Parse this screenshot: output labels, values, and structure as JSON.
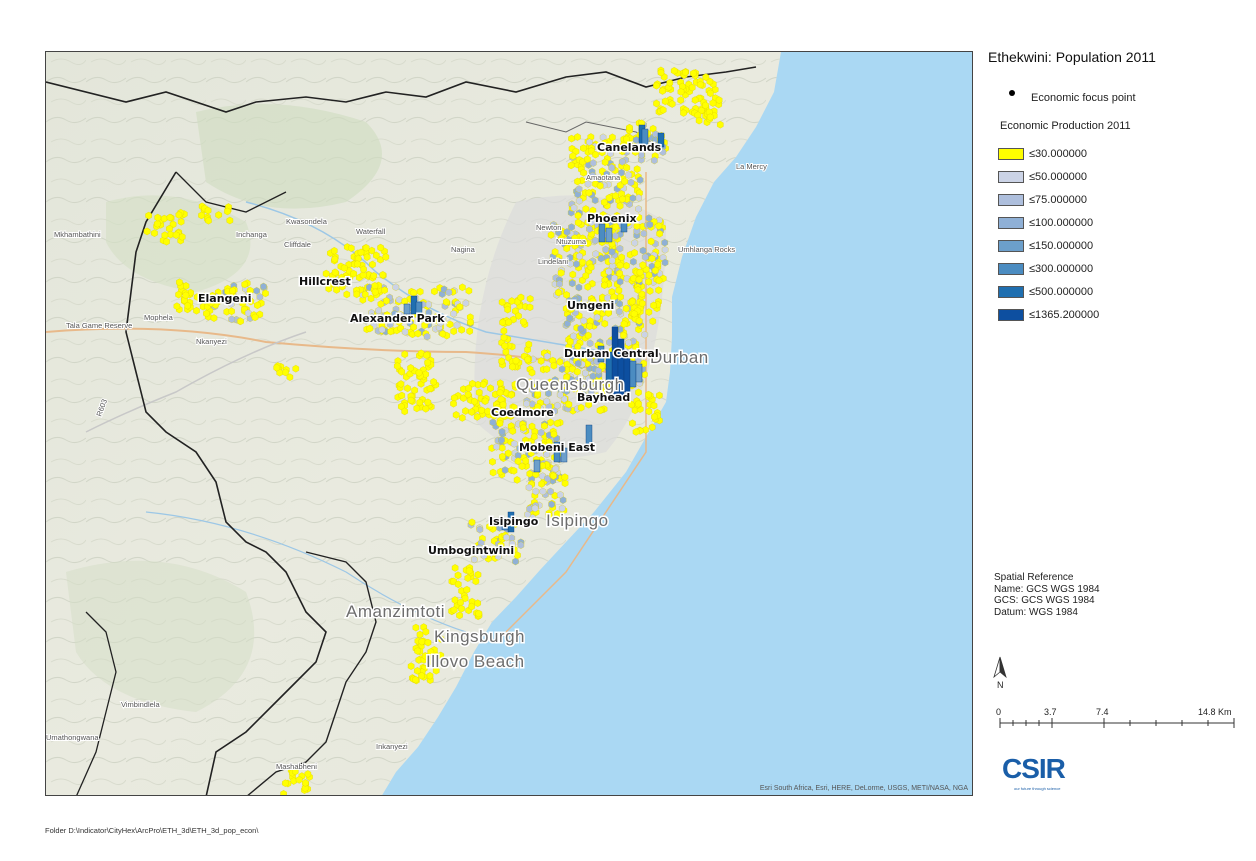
{
  "legend": {
    "title": "Ethekwini: Population 2011",
    "focus_point_label": "Economic focus point",
    "production_title": "Economic Production 2011",
    "classes": [
      {
        "label": "≤30.000000",
        "color": "#ffff00"
      },
      {
        "label": "≤50.000000",
        "color": "#cbd3e6"
      },
      {
        "label": "≤75.000000",
        "color": "#aebfdd"
      },
      {
        "label": "≤100.000000",
        "color": "#8fb0d6"
      },
      {
        "label": "≤150.000000",
        "color": "#6c9fcb"
      },
      {
        "label": "≤300.000000",
        "color": "#4b8cc1"
      },
      {
        "label": "≤500.000000",
        "color": "#1f6fb0"
      },
      {
        "label": "≤1365.200000",
        "color": "#0d4fa0"
      }
    ]
  },
  "spatial_reference": {
    "heading": "Spatial Reference",
    "name": "Name: GCS WGS 1984",
    "gcs": "GCS: GCS WGS 1984",
    "datum": "Datum: WGS 1984"
  },
  "north_label": "N",
  "scale": {
    "ticks": [
      "0",
      "3.7",
      "7.4",
      "14.8 Km"
    ]
  },
  "logo": {
    "text": "CSIR",
    "tagline": "our future through science"
  },
  "attribution": "Esri South Africa, Esri, HERE, DeLorme, USGS, METI/NASA, NGA",
  "folder_path": "Folder D:\\Indicator\\CityHex\\ArcPro\\ETH_3d\\ETH_3d_pop_econ\\",
  "map": {
    "focus_labels": [
      "Canelands",
      "Phoenix",
      "Hillcrest",
      "Elangeni",
      "Umgeni",
      "Alexander Park",
      "Durban Central",
      "Bayhead",
      "Coedmore",
      "Mobeni East",
      "Isipingo",
      "Umbogintwini"
    ],
    "basemap_big_labels": [
      "Durban",
      "Amanzimtoti",
      "Kingsburgh",
      "Illovo Beach",
      "Isipingo",
      "Queensburgh"
    ],
    "basemap_small_labels": [
      "Mkhambathini",
      "Mophela",
      "Tala Game Reserve",
      "Nkanyezi",
      "Inchanga",
      "Kwasondela",
      "Cliffdale",
      "Waterfall",
      "Nagina",
      "Newton",
      "Lindelani",
      "Amaotana",
      "Umhlanga Rocks",
      "La Mercy",
      "Ntuzuma",
      "Vimbindlela",
      "Umathongwana",
      "Mashabheni",
      "Inkanyezi",
      "R603"
    ]
  }
}
